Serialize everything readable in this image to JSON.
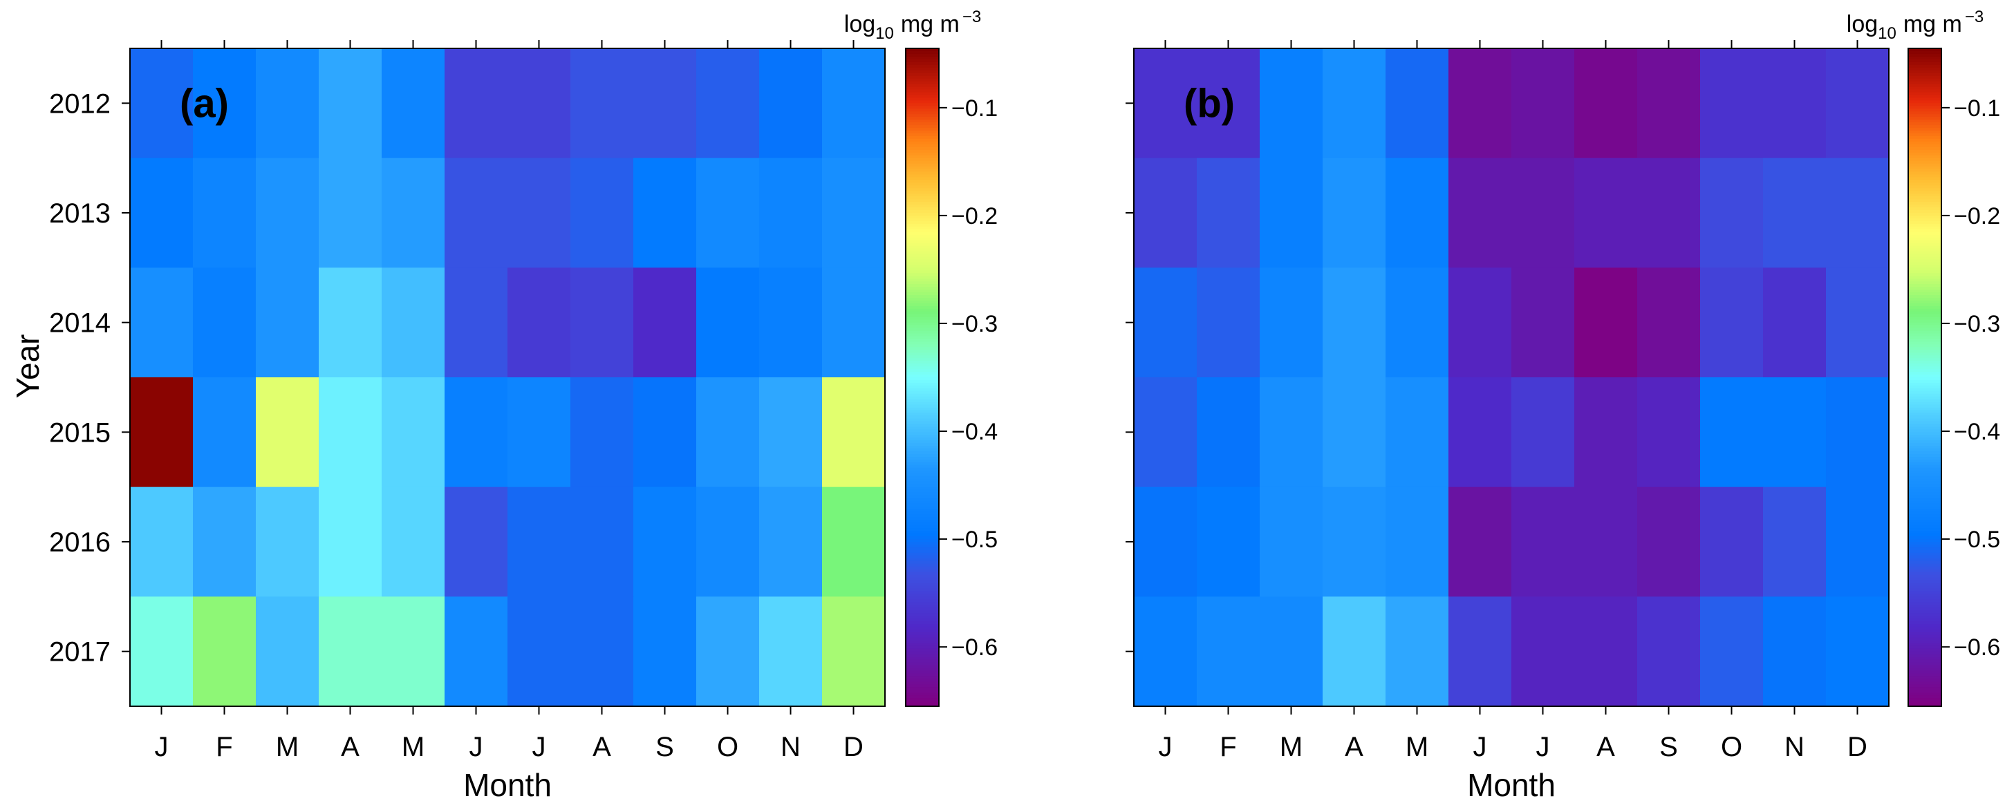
{
  "chart_data": [
    {
      "type": "heatmap",
      "panel_label": "(a)",
      "xlabel": "Month",
      "ylabel": "Year",
      "x_categories": [
        "J",
        "F",
        "M",
        "A",
        "M",
        "J",
        "J",
        "A",
        "S",
        "O",
        "N",
        "D"
      ],
      "y_categories": [
        "2012",
        "2013",
        "2014",
        "2015",
        "2016",
        "2017"
      ],
      "values": [
        [
          -0.51,
          -0.49,
          -0.46,
          -0.42,
          -0.47,
          -0.55,
          -0.55,
          -0.53,
          -0.53,
          -0.52,
          -0.5,
          -0.46
        ],
        [
          -0.49,
          -0.47,
          -0.44,
          -0.42,
          -0.43,
          -0.53,
          -0.53,
          -0.52,
          -0.49,
          -0.46,
          -0.47,
          -0.45
        ],
        [
          -0.45,
          -0.48,
          -0.44,
          -0.38,
          -0.4,
          -0.53,
          -0.56,
          -0.55,
          -0.58,
          -0.49,
          -0.48,
          -0.45
        ],
        [
          -0.05,
          -0.46,
          -0.24,
          -0.36,
          -0.38,
          -0.48,
          -0.47,
          -0.51,
          -0.5,
          -0.44,
          -0.42,
          -0.24
        ],
        [
          -0.39,
          -0.42,
          -0.39,
          -0.36,
          -0.38,
          -0.53,
          -0.51,
          -0.51,
          -0.48,
          -0.46,
          -0.43,
          -0.29
        ],
        [
          -0.34,
          -0.28,
          -0.4,
          -0.33,
          -0.33,
          -0.46,
          -0.51,
          -0.51,
          -0.48,
          -0.42,
          -0.38,
          -0.27
        ]
      ],
      "colorbar": {
        "title_base": "log",
        "title_sub": "10",
        "title_unit": "mg m",
        "title_exp": "−3",
        "range": [
          -0.655,
          -0.045
        ],
        "ticks": [
          -0.6,
          -0.5,
          -0.4,
          -0.3,
          -0.2,
          -0.1
        ],
        "tick_labels": [
          "−0.6",
          "−0.5",
          "−0.4",
          "−0.3",
          "−0.2",
          "−0.1"
        ]
      }
    },
    {
      "type": "heatmap",
      "panel_label": "(b)",
      "xlabel": "Month",
      "ylabel": "",
      "x_categories": [
        "J",
        "F",
        "M",
        "A",
        "M",
        "J",
        "J",
        "A",
        "S",
        "O",
        "N",
        "D"
      ],
      "y_categories": [
        "2012",
        "2013",
        "2014",
        "2015",
        "2016",
        "2017"
      ],
      "values": [
        [
          -0.57,
          -0.57,
          -0.48,
          -0.45,
          -0.51,
          -0.63,
          -0.62,
          -0.64,
          -0.63,
          -0.57,
          -0.57,
          -0.56
        ],
        [
          -0.55,
          -0.53,
          -0.48,
          -0.44,
          -0.48,
          -0.61,
          -0.61,
          -0.6,
          -0.6,
          -0.54,
          -0.53,
          -0.53
        ],
        [
          -0.51,
          -0.52,
          -0.47,
          -0.43,
          -0.47,
          -0.59,
          -0.61,
          -0.65,
          -0.63,
          -0.55,
          -0.57,
          -0.53
        ],
        [
          -0.52,
          -0.5,
          -0.45,
          -0.43,
          -0.45,
          -0.58,
          -0.56,
          -0.6,
          -0.59,
          -0.49,
          -0.49,
          -0.5
        ],
        [
          -0.5,
          -0.49,
          -0.45,
          -0.44,
          -0.45,
          -0.62,
          -0.6,
          -0.6,
          -0.61,
          -0.56,
          -0.53,
          -0.5
        ],
        [
          -0.48,
          -0.46,
          -0.46,
          -0.39,
          -0.42,
          -0.55,
          -0.59,
          -0.59,
          -0.57,
          -0.52,
          -0.5,
          -0.49
        ]
      ],
      "colorbar": {
        "title_base": "log",
        "title_sub": "10",
        "title_unit": "mg m",
        "title_exp": "−3",
        "range": [
          -0.655,
          -0.045
        ],
        "ticks": [
          -0.6,
          -0.5,
          -0.4,
          -0.3,
          -0.2,
          -0.1
        ],
        "tick_labels": [
          "−0.6",
          "−0.5",
          "−0.4",
          "−0.3",
          "−0.2",
          "−0.1"
        ]
      }
    }
  ]
}
